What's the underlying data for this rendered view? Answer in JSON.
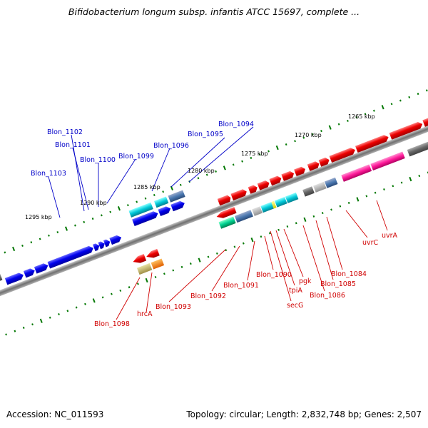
{
  "title": "Bifidobacterium longum subsp. infantis ATCC 15697, complete ...",
  "footer": {
    "accession": "Accession: NC_011593",
    "topology": "Topology: circular; Length: 2,832,748 bp; Genes: 2,507"
  },
  "scale_labels": [
    "1265 kbp",
    "1270 kbp",
    "1275 kbp",
    "1280 kbp",
    "1285 kbp",
    "1290 kbp",
    "1295 kbp"
  ],
  "upper_labels": [
    "Blon_1094",
    "Blon_1095",
    "Blon_1096",
    "Blon_1099",
    "Blon_1100",
    "Blon_1101",
    "Blon_1102",
    "Blon_1103"
  ],
  "lower_labels": [
    "uvrA",
    "uvrC",
    "Blon_1084",
    "Blon_1085",
    "Blon_1086",
    "pgk",
    "tpiA",
    "secG",
    "Blon_1090",
    "Blon_1091",
    "Blon_1092",
    "Blon_1093",
    "hrcA",
    "Blon_1098"
  ],
  "colors": {
    "forward_gene": "#0000ee",
    "reverse_gene": "#ee0000",
    "upper_label": "#0000c8",
    "lower_label": "#d00000",
    "scale_tick": "#007700",
    "backbone": "#888888"
  }
}
